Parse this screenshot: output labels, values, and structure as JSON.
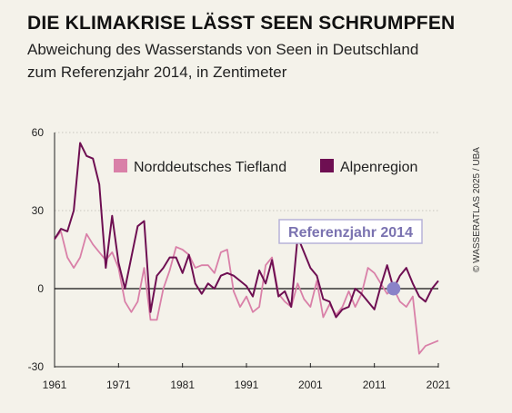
{
  "header": {
    "title": "DIE KLIMAKRISE LÄSST SEEN SCHRUMPFEN",
    "subtitle_line1": "Abweichung des Wasserstands von Seen in Deutschland",
    "subtitle_line2": "zum Referenzjahr 2014, in Zentimeter"
  },
  "credit": "© WASSERATLAS 2025 / UBA",
  "colors": {
    "tiefland": "#d980a8",
    "alpen": "#6e0f52",
    "reference": "#8a82c8",
    "zero_line": "#111111",
    "grid": "#c9c6bd"
  },
  "chart_data": {
    "type": "line",
    "title": "DIE KLIMAKRISE LÄSST SEEN SCHRUMPFEN",
    "xlabel": "",
    "ylabel": "",
    "xlim": [
      1961,
      2021
    ],
    "ylim": [
      -30,
      60
    ],
    "x_ticks": [
      1961,
      1971,
      1981,
      1991,
      2001,
      2011,
      2021
    ],
    "y_ticks": [
      -30,
      0,
      30,
      60
    ],
    "legend": [
      "Norddeutsches Tiefland",
      "Alpenregion"
    ],
    "legend_position": "top",
    "reference": {
      "label": "Referenzjahr 2014",
      "year": 2014,
      "value": 0
    },
    "series": [
      {
        "name": "Norddeutsches Tiefland",
        "color": "#d980a8",
        "x": [
          1961,
          1962,
          1963,
          1964,
          1965,
          1966,
          1967,
          1968,
          1969,
          1970,
          1971,
          1972,
          1973,
          1974,
          1975,
          1976,
          1977,
          1978,
          1979,
          1980,
          1981,
          1982,
          1983,
          1984,
          1985,
          1986,
          1987,
          1988,
          1989,
          1990,
          1991,
          1992,
          1993,
          1994,
          1995,
          1996,
          1997,
          1998,
          1999,
          2000,
          2001,
          2002,
          2003,
          2004,
          2005,
          2006,
          2007,
          2008,
          2009,
          2010,
          2011,
          2012,
          2013,
          2014,
          2015,
          2016,
          2017,
          2018,
          2019,
          2020,
          2021
        ],
        "values": [
          19,
          22,
          12,
          8,
          12,
          21,
          17,
          14,
          11,
          14,
          8,
          -5,
          -9,
          -5,
          8,
          -12,
          -12,
          0,
          7,
          16,
          15,
          13,
          8,
          9,
          9,
          6,
          14,
          15,
          -1,
          -7,
          -3,
          -9,
          -7,
          9,
          12,
          -2,
          -5,
          -7,
          2,
          -4,
          -7,
          3,
          -11,
          -6,
          -10,
          -7,
          -1,
          -7,
          -2,
          8,
          6,
          2,
          -2,
          0,
          -5,
          -7,
          -3,
          -25,
          -22,
          -21,
          -20
        ]
      },
      {
        "name": "Alpenregion",
        "color": "#6e0f52",
        "x": [
          1961,
          1962,
          1963,
          1964,
          1965,
          1966,
          1967,
          1968,
          1969,
          1970,
          1971,
          1972,
          1973,
          1974,
          1975,
          1976,
          1977,
          1978,
          1979,
          1980,
          1981,
          1982,
          1983,
          1984,
          1985,
          1986,
          1987,
          1988,
          1989,
          1990,
          1991,
          1992,
          1993,
          1994,
          1995,
          1996,
          1997,
          1998,
          1999,
          2000,
          2001,
          2002,
          2003,
          2004,
          2005,
          2006,
          2007,
          2008,
          2009,
          2010,
          2011,
          2012,
          2013,
          2014,
          2015,
          2016,
          2017,
          2018,
          2019,
          2020,
          2021
        ],
        "values": [
          19,
          23,
          22,
          30,
          56,
          51,
          50,
          40,
          8,
          28,
          10,
          0,
          12,
          24,
          26,
          -9,
          5,
          8,
          12,
          12,
          6,
          13,
          2,
          -2,
          2,
          0,
          5,
          6,
          5,
          3,
          1,
          -3,
          7,
          2,
          11,
          -3,
          -1,
          -7,
          20,
          14,
          8,
          5,
          -4,
          -5,
          -11,
          -8,
          -7,
          0,
          -2,
          -5,
          -8,
          1,
          9,
          0,
          5,
          8,
          2,
          -3,
          -5,
          0,
          3
        ]
      }
    ]
  }
}
